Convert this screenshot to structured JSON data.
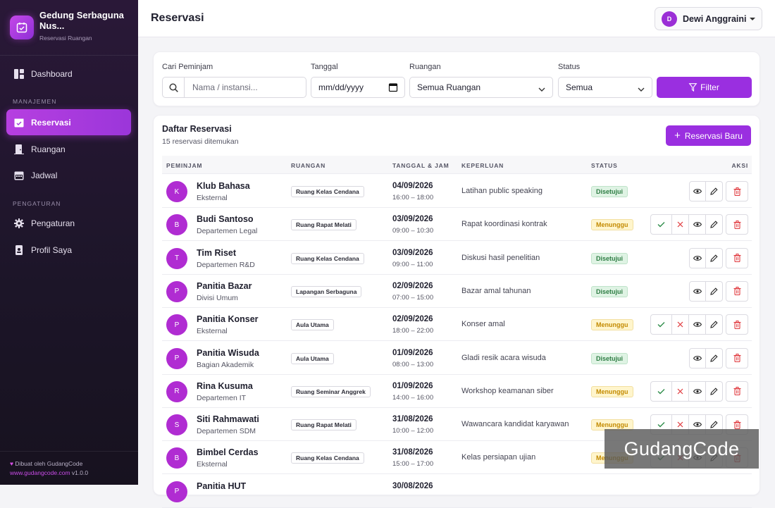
{
  "sidebar": {
    "brand_title": "Gedung Serbaguna Nus...",
    "brand_sub": "Reservasi Ruangan",
    "dashboard": "Dashboard",
    "section_manage": "MANAJEMEN",
    "reservasi": "Reservasi",
    "ruangan": "Ruangan",
    "jadwal": "Jadwal",
    "section_settings": "PENGATURAN",
    "pengaturan": "Pengaturan",
    "profil": "Profil Saya",
    "footer_line1": "Dibuat oleh GudangCode",
    "footer_url": "www.gudangcode.com",
    "footer_version": "v1.0.0"
  },
  "header": {
    "title": "Reservasi",
    "user_initial": "D",
    "user_name": "Dewi Anggraini"
  },
  "filter": {
    "search_label": "Cari Peminjam",
    "search_placeholder": "Nama / instansi...",
    "date_label": "Tanggal",
    "date_placeholder": "mm/dd/yyyy",
    "room_label": "Ruangan",
    "room_value": "Semua Ruangan",
    "status_label": "Status",
    "status_value": "Semua",
    "button": "Filter"
  },
  "list": {
    "title": "Daftar Reservasi",
    "subtitle": "15 reservasi ditemukan",
    "new_button": "Reservasi Baru",
    "columns": {
      "borrower": "PEMINJAM",
      "room": "RUANGAN",
      "datetime": "TANGGAL & JAM",
      "purpose": "KEPERLUAN",
      "status": "STATUS",
      "action": "AKSI"
    },
    "rows": [
      {
        "initial": "K",
        "name": "Klub Bahasa",
        "org": "Eksternal",
        "room": "Ruang Kelas Cendana",
        "date": "04/09/2026",
        "time": "16:00 – 18:00",
        "purpose": "Latihan public speaking",
        "status": "Disetujui",
        "state": "ok"
      },
      {
        "initial": "B",
        "name": "Budi Santoso",
        "org": "Departemen Legal",
        "room": "Ruang Rapat Melati",
        "date": "03/09/2026",
        "time": "09:00 – 10:30",
        "purpose": "Rapat koordinasi kontrak",
        "status": "Menunggu",
        "state": "wait"
      },
      {
        "initial": "T",
        "name": "Tim Riset",
        "org": "Departemen R&D",
        "room": "Ruang Kelas Cendana",
        "date": "03/09/2026",
        "time": "09:00 – 11:00",
        "purpose": "Diskusi hasil penelitian",
        "status": "Disetujui",
        "state": "ok"
      },
      {
        "initial": "P",
        "name": "Panitia Bazar",
        "org": "Divisi Umum",
        "room": "Lapangan Serbaguna",
        "date": "02/09/2026",
        "time": "07:00 – 15:00",
        "purpose": "Bazar amal tahunan",
        "status": "Disetujui",
        "state": "ok"
      },
      {
        "initial": "P",
        "name": "Panitia Konser",
        "org": "Eksternal",
        "room": "Aula Utama",
        "date": "02/09/2026",
        "time": "18:00 – 22:00",
        "purpose": "Konser amal",
        "status": "Menunggu",
        "state": "wait"
      },
      {
        "initial": "P",
        "name": "Panitia Wisuda",
        "org": "Bagian Akademik",
        "room": "Aula Utama",
        "date": "01/09/2026",
        "time": "08:00 – 13:00",
        "purpose": "Gladi resik acara wisuda",
        "status": "Disetujui",
        "state": "ok"
      },
      {
        "initial": "R",
        "name": "Rina Kusuma",
        "org": "Departemen IT",
        "room": "Ruang Seminar Anggrek",
        "date": "01/09/2026",
        "time": "14:00 – 16:00",
        "purpose": "Workshop keamanan siber",
        "status": "Menunggu",
        "state": "wait"
      },
      {
        "initial": "S",
        "name": "Siti Rahmawati",
        "org": "Departemen SDM",
        "room": "Ruang Rapat Melati",
        "date": "31/08/2026",
        "time": "10:00 – 12:00",
        "purpose": "Wawancara kandidat karyawan",
        "status": "Menunggu",
        "state": "wait"
      },
      {
        "initial": "B",
        "name": "Bimbel Cerdas",
        "org": "Eksternal",
        "room": "Ruang Kelas Cendana",
        "date": "31/08/2026",
        "time": "15:00 – 17:00",
        "purpose": "Kelas persiapan ujian",
        "status": "Menunggu",
        "state": "wait"
      },
      {
        "initial": "P",
        "name": "Panitia HUT",
        "org": "",
        "room": "",
        "date": "30/08/2026",
        "time": "",
        "purpose": "",
        "status": "",
        "state": ""
      }
    ]
  },
  "watermark": "GudangCode"
}
